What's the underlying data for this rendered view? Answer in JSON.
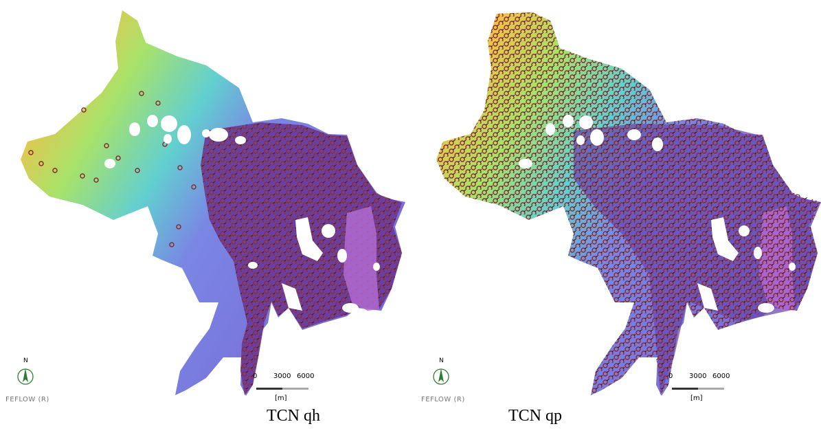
{
  "panels": [
    {
      "caption": "TCN qh"
    },
    {
      "caption": "TCN qp"
    }
  ],
  "watermark": "FEFLOW (R)",
  "north_label": "N",
  "scale_bar": {
    "ticks": [
      "0",
      "3000",
      "6000"
    ],
    "unit": "[m]"
  },
  "colors": {
    "high": "#e5463a",
    "mid_high": "#f2c04a",
    "mid": "#9fe06a",
    "low": "#58c8d6",
    "lowest": "#7c7ce0",
    "saline_zone": "#b06ad0",
    "marker": "#8a2a2a",
    "compass": "#2e7d32"
  }
}
